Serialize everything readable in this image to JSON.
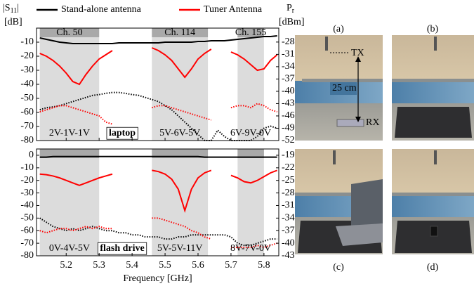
{
  "chart_data": [
    {
      "type": "line",
      "legend": "top",
      "y_label": "|S",
      "y_label_sub": "11",
      "y_label_end": "|",
      "y_unit": "[dB]",
      "y2_label": "P",
      "y2_label_sub": "r",
      "y2_unit": "[dBm]",
      "xlim": [
        5.11,
        5.845
      ],
      "xticks": [
        5.2,
        5.3,
        5.4,
        5.5,
        5.6,
        5.7,
        5.8
      ],
      "ylim": [
        -80,
        0
      ],
      "yticks": [
        -80,
        -70,
        -60,
        -50,
        -40,
        -30,
        -20,
        -10
      ],
      "y2lim": [
        -52,
        -24.6
      ],
      "y2ticks": [
        -52,
        -49,
        -46,
        -43,
        -40,
        -37,
        -34,
        -31,
        -28
      ],
      "bands": [
        {
          "label": "Ch. 50",
          "range": [
            5.12,
            5.3
          ],
          "note": "2V-1V-1V"
        },
        {
          "label": "Ch. 114",
          "range": [
            5.46,
            5.63
          ],
          "note": "5V-6V-5V"
        },
        {
          "label": "Ch. 155",
          "range": [
            5.72,
            5.8
          ],
          "note": "6V-9V-0V"
        }
      ],
      "scenario": "laptop",
      "x": [
        5.12,
        5.14,
        5.16,
        5.18,
        5.2,
        5.22,
        5.24,
        5.26,
        5.28,
        5.3,
        5.32,
        5.34,
        5.36,
        5.38,
        5.4,
        5.42,
        5.44,
        5.46,
        5.48,
        5.5,
        5.52,
        5.54,
        5.56,
        5.58,
        5.6,
        5.62,
        5.64,
        5.66,
        5.68,
        5.7,
        5.72,
        5.74,
        5.76,
        5.78,
        5.8,
        5.82,
        5.84
      ],
      "series": [
        {
          "name": "Stand-alone antenna",
          "color": "#000000",
          "dash": "solid",
          "values": [
            -7,
            -8,
            -9,
            -10,
            -10.5,
            -11,
            -11,
            -11,
            -11,
            -11,
            -11,
            -11,
            -10.5,
            -10.5,
            -10.5,
            -10.5,
            -10.5,
            -10.5,
            -10.5,
            -10,
            -10,
            -10,
            -10,
            -10,
            -9.5,
            -9.5,
            -9,
            -9,
            -9,
            -8.5,
            -8,
            -7.5,
            -7,
            -6.5,
            -6,
            -6,
            -5.5
          ]
        },
        {
          "name": "Tuner Antenna",
          "color": "#ff0000",
          "dash": "solid",
          "values": [
            -18,
            -20,
            -23,
            -27,
            -32,
            -38,
            -40,
            -33,
            -27,
            -22,
            -19,
            -16,
            null,
            null,
            null,
            null,
            null,
            -14,
            -16,
            -19,
            -23,
            -29,
            -35,
            -29,
            -22,
            -18,
            -15,
            null,
            null,
            -17,
            -19,
            -22,
            -26,
            -30,
            -29,
            -23,
            -19
          ]
        },
        {
          "color": "#000000",
          "dash": "dotted",
          "axis": "y2",
          "values": [
            -44.5,
            -44,
            -43.8,
            -43.5,
            -43,
            -42.5,
            -42,
            -41.5,
            -41,
            -40.8,
            -40.5,
            -40.3,
            -40.3,
            -40.5,
            -40.8,
            -41,
            -41.5,
            -42,
            -42.5,
            -43.5,
            -44.5,
            -46,
            -47.5,
            -49,
            -50.5,
            -52,
            -52,
            -49.5,
            -51,
            -52,
            -52,
            -52,
            -52,
            -51,
            -49,
            -48.5,
            -49
          ]
        },
        {
          "color": "#ff0000",
          "dash": "dotted",
          "axis": "y2",
          "values": [
            -45,
            -44.5,
            -44,
            -43.5,
            -43.5,
            -44,
            -44.5,
            -45,
            -45.5,
            -46,
            -47.5,
            -48,
            null,
            null,
            null,
            null,
            null,
            -44,
            -43.5,
            -43.5,
            -44,
            -44.5,
            -45,
            -45.5,
            -46,
            -46.5,
            -47,
            null,
            null,
            -44,
            -43.5,
            -43.5,
            -44,
            -43,
            -43.5,
            -44.5,
            -45
          ]
        }
      ]
    },
    {
      "type": "line",
      "x_label": "Frequency [GHz]",
      "xlim": [
        5.11,
        5.845
      ],
      "xticks": [
        5.2,
        5.3,
        5.4,
        5.5,
        5.6,
        5.7,
        5.8
      ],
      "ylim": [
        -80,
        5
      ],
      "yticks": [
        -80,
        -70,
        -60,
        -50,
        -40,
        -30,
        -20,
        -10,
        0
      ],
      "y2lim": [
        -43,
        -17.5
      ],
      "y2ticks": [
        -43,
        -40,
        -37,
        -34,
        -31,
        -28,
        -25,
        -22,
        -19
      ],
      "bands": [
        {
          "range": [
            5.12,
            5.3
          ],
          "note": "0V-4V-5V"
        },
        {
          "range": [
            5.46,
            5.63
          ],
          "note": "5V-5V-11V"
        },
        {
          "range": [
            5.72,
            5.8
          ],
          "note": "8V-7V-0V"
        }
      ],
      "scenario": "flash drive",
      "x": [
        5.12,
        5.14,
        5.16,
        5.18,
        5.2,
        5.22,
        5.24,
        5.26,
        5.28,
        5.3,
        5.32,
        5.34,
        5.36,
        5.38,
        5.4,
        5.42,
        5.44,
        5.46,
        5.48,
        5.5,
        5.52,
        5.54,
        5.56,
        5.58,
        5.6,
        5.62,
        5.64,
        5.66,
        5.68,
        5.7,
        5.72,
        5.74,
        5.76,
        5.78,
        5.8,
        5.82,
        5.84
      ],
      "series": [
        {
          "color": "#000000",
          "dash": "solid",
          "values": [
            -1.5,
            -1.5,
            -1,
            -1,
            -1,
            -1,
            -1,
            -1,
            -1,
            -1,
            -1,
            -1,
            -1,
            -1,
            -1,
            -1,
            -1,
            -1,
            -1,
            -1,
            -1,
            -1,
            -1,
            -1,
            -1,
            -1.5,
            -1.5,
            -1.5,
            -1.5,
            -1.5,
            -1.5,
            -1.5,
            -1.5,
            -1.5,
            -1.5,
            -1.5,
            -1.5
          ]
        },
        {
          "color": "#ff0000",
          "dash": "solid",
          "values": [
            -15,
            -15.5,
            -16.5,
            -18,
            -20,
            -22,
            -24,
            -22,
            -20,
            -18,
            -16.5,
            -15,
            null,
            null,
            null,
            null,
            null,
            -12,
            -13,
            -15,
            -19,
            -27,
            -44,
            -27,
            -18,
            -14,
            -12,
            null,
            null,
            -16,
            -18,
            -21,
            -22,
            -20,
            -17,
            -14,
            -12
          ]
        },
        {
          "color": "#000000",
          "dash": "dotted",
          "axis": "y2",
          "values": [
            -34,
            -35,
            -36,
            -36.5,
            -37,
            -36.5,
            -37,
            -36.5,
            -36,
            -36.5,
            -37,
            -37,
            -37.5,
            -37.5,
            -38,
            -38,
            -38.5,
            -38.5,
            -38.5,
            -39,
            -39,
            -38.5,
            -38.5,
            -38,
            -38,
            -38,
            -38,
            -38,
            -38,
            -38.5,
            -40,
            -40.5,
            -40.5,
            -40,
            -39.5,
            -39,
            -39
          ]
        },
        {
          "color": "#ff0000",
          "dash": "dotted",
          "axis": "y2",
          "values": [
            -37,
            -37.5,
            -37,
            -36.5,
            -36.5,
            -37,
            -36.5,
            -36,
            -36.5,
            -36,
            -36.5,
            -36.5,
            null,
            null,
            null,
            null,
            null,
            -34,
            -34,
            -34.5,
            -35,
            -35.5,
            -36,
            -37,
            -37.5,
            -38.5,
            -39,
            null,
            null,
            -41,
            -41,
            -41,
            -41,
            -40.5,
            -41,
            -40.5,
            -40
          ]
        }
      ]
    }
  ],
  "photos": {
    "panels": [
      "(a)",
      "(b)",
      "(c)",
      "(d)"
    ],
    "tx": "TX",
    "rx": "RX",
    "distance": "25 cm"
  }
}
